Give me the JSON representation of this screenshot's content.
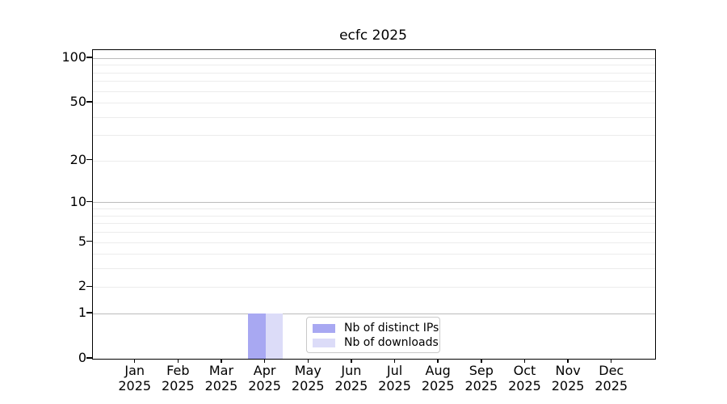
{
  "title": "ecfc 2025",
  "colors": {
    "bar_distinct_ips": "#a8a8f2",
    "bar_downloads": "#dcdcf8",
    "grid_minor": "#ececec",
    "grid_major": "#bcbcbc",
    "spine": "#000000",
    "text": "#000000",
    "legend_border": "#c9c9c9"
  },
  "legend": {
    "items": [
      {
        "label": "Nb of distinct IPs",
        "color": "#a8a8f2"
      },
      {
        "label": "Nb of downloads",
        "color": "#dcdcf8"
      }
    ]
  },
  "chart_data": {
    "type": "bar",
    "title": "ecfc 2025",
    "x_labels": [
      [
        "Jan",
        "2025"
      ],
      [
        "Feb",
        "2025"
      ],
      [
        "Mar",
        "2025"
      ],
      [
        "Apr",
        "2025"
      ],
      [
        "May",
        "2025"
      ],
      [
        "Jun",
        "2025"
      ],
      [
        "Jul",
        "2025"
      ],
      [
        "Aug",
        "2025"
      ],
      [
        "Sep",
        "2025"
      ],
      [
        "Oct",
        "2025"
      ],
      [
        "Nov",
        "2025"
      ],
      [
        "Dec",
        "2025"
      ]
    ],
    "series": [
      {
        "name": "Nb of distinct IPs",
        "color": "#a8a8f2",
        "values": [
          0,
          0,
          0,
          1,
          0,
          0,
          0,
          0,
          0,
          0,
          0,
          0
        ]
      },
      {
        "name": "Nb of downloads",
        "color": "#dcdcf8",
        "values": [
          0,
          0,
          0,
          1,
          0,
          0,
          0,
          0,
          0,
          0,
          0,
          0
        ]
      }
    ],
    "y_axis": {
      "scale": "log1p",
      "tick_values": [
        0,
        1,
        2,
        5,
        10,
        20,
        50,
        100
      ],
      "minor_gridlines": [
        2,
        3,
        4,
        5,
        6,
        7,
        8,
        9,
        20,
        30,
        40,
        50,
        60,
        70,
        80,
        90
      ],
      "major_gridlines": [
        1,
        10,
        100
      ],
      "ylim": [
        0,
        114
      ]
    },
    "legend_position": "bottom-center",
    "grid": true
  }
}
